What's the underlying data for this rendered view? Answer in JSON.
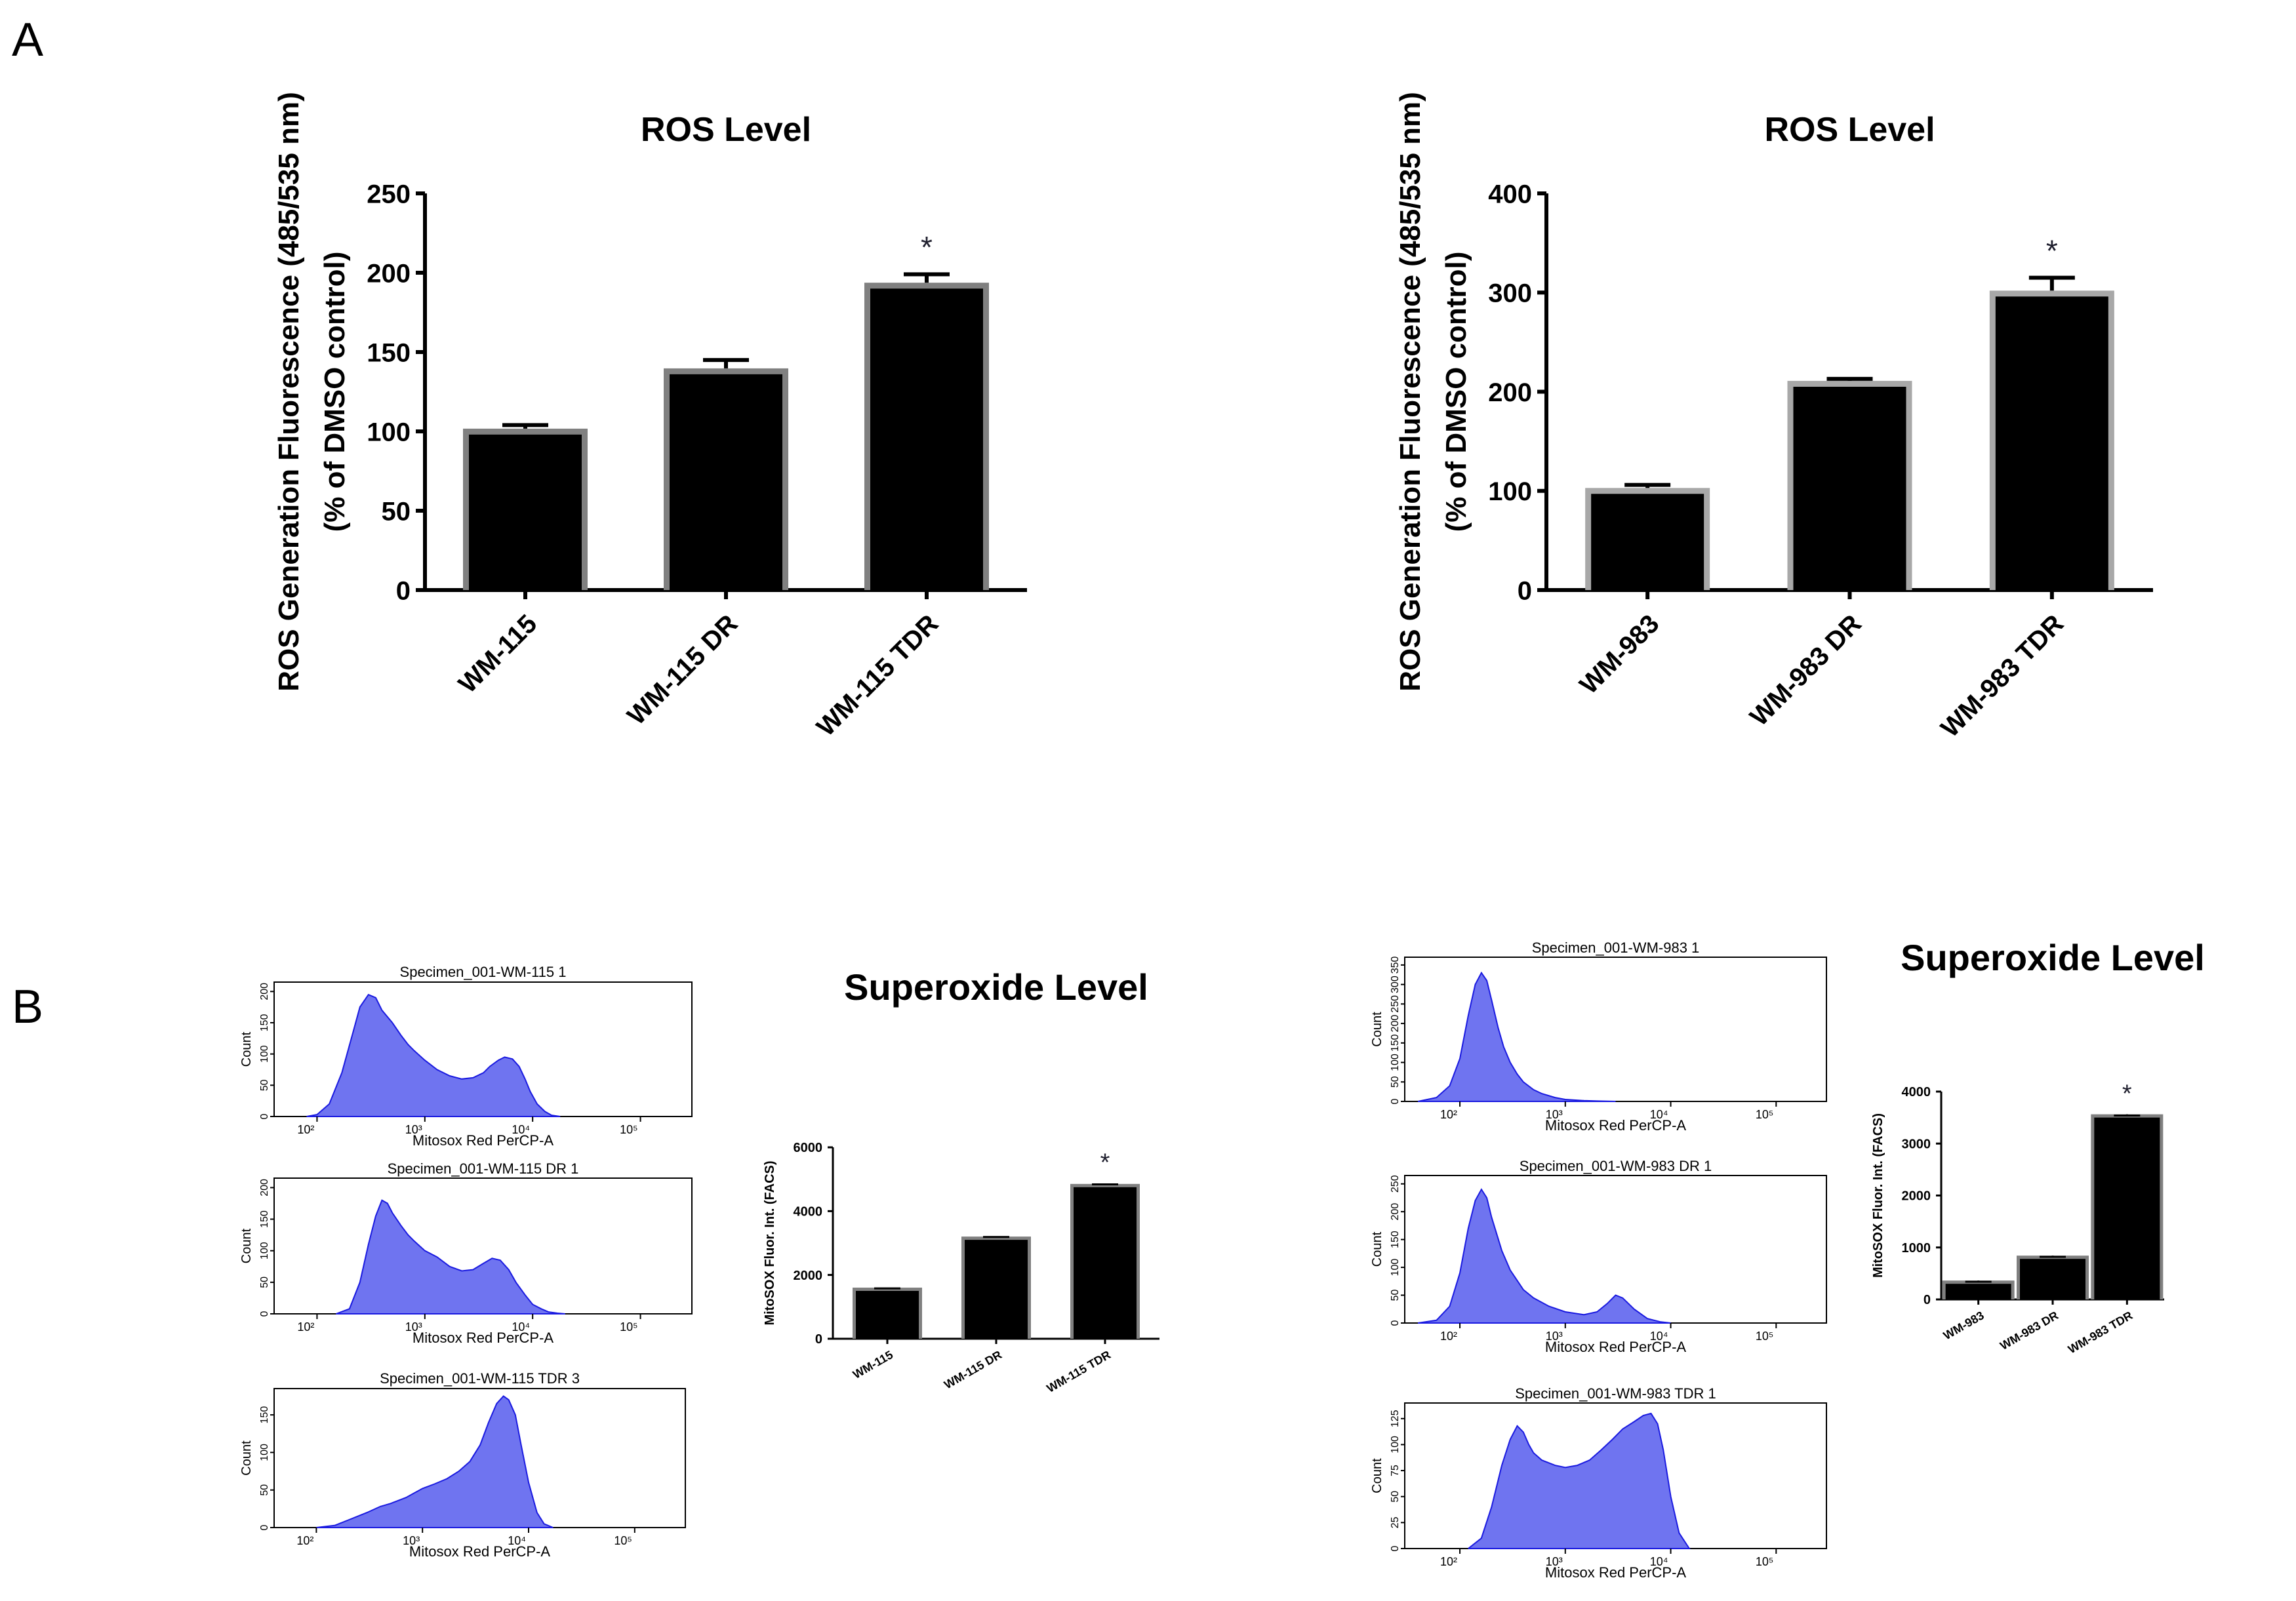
{
  "panel_labels": {
    "A": "A",
    "B": "B"
  },
  "colors": {
    "bar_fill": "#000000",
    "bar_border": "#808080",
    "bar_border_light": "#a8a8a8",
    "axis": "#000000",
    "histogram_fill": "#6f74f0",
    "histogram_edge": "#1a1ae0",
    "significance": "#1f1f2e"
  },
  "chart_data": [
    {
      "id": "ros_wm115",
      "type": "bar",
      "title": "ROS Level",
      "ylabel_line1": "ROS Generation Fluorescence (485/535 nm)",
      "ylabel_line2": "(% of DMSO control)",
      "xlabel": "",
      "categories": [
        "WM-115",
        "WM-115 DR",
        "WM-115 TDR"
      ],
      "values": [
        98,
        136,
        190
      ],
      "errors": [
        6,
        9,
        9
      ],
      "significance": [
        "",
        "",
        "*"
      ],
      "ylim": [
        0,
        250
      ],
      "yticks": [
        0,
        50,
        100,
        150,
        200,
        250
      ],
      "ytick_labels": [
        "0",
        "50",
        "100",
        "150",
        "200",
        "250"
      ],
      "grid": false
    },
    {
      "id": "ros_wm983",
      "type": "bar",
      "title": "ROS Level",
      "ylabel_line1": "ROS Generation Fluorescence (485/535 nm)",
      "ylabel_line2": "(% of DMSO control)",
      "xlabel": "",
      "categories": [
        "WM-983",
        "WM-983 DR",
        "WM-983 TDR"
      ],
      "values": [
        97,
        205,
        296
      ],
      "errors": [
        9,
        8,
        19
      ],
      "significance": [
        "",
        "",
        "*"
      ],
      "ylim": [
        0,
        400
      ],
      "yticks": [
        0,
        100,
        200,
        300,
        400
      ],
      "ytick_labels": [
        "0",
        "100",
        "200",
        "300",
        "400"
      ],
      "grid": false
    },
    {
      "id": "superoxide_wm115",
      "type": "bar",
      "title": "Superoxide Level",
      "ylabel": "MitoSOX Fluor. Int. (FACS)",
      "xlabel": "",
      "categories": [
        "WM-115",
        "WM-115 DR",
        "WM-115 TDR"
      ],
      "values": [
        1500,
        3100,
        4750
      ],
      "errors": [
        80,
        90,
        90
      ],
      "significance": [
        "",
        "",
        "*"
      ],
      "ylim": [
        0,
        6000
      ],
      "yticks": [
        0,
        2000,
        4000,
        6000
      ],
      "ytick_labels": [
        "0",
        "2000",
        "4000",
        "6000"
      ],
      "grid": false
    },
    {
      "id": "superoxide_wm983",
      "type": "bar",
      "title": "Superoxide Level",
      "ylabel": "MitoSOX Fluor. Int. (FACS)",
      "xlabel": "",
      "categories": [
        "WM-983",
        "WM-983 DR",
        "WM-983 TDR"
      ],
      "values": [
        300,
        780,
        3500
      ],
      "errors": [
        40,
        40,
        40
      ],
      "significance": [
        "",
        "",
        "*"
      ],
      "ylim": [
        0,
        4000
      ],
      "yticks": [
        0,
        1000,
        2000,
        3000,
        4000
      ],
      "ytick_labels": [
        "0",
        "1000",
        "2000",
        "3000",
        "4000"
      ],
      "grid": false
    },
    {
      "id": "hist_wm115_1",
      "type": "area",
      "title": "Specimen_001-WM-115 1",
      "xlabel": "Mitosox Red PerCP-A",
      "ylabel": "Count",
      "x_scale": "log",
      "xlim": [
        40,
        300000
      ],
      "xticks": [
        100,
        1000,
        10000,
        100000
      ],
      "xtick_labels": [
        "10²",
        "10³",
        "10⁴",
        "10⁵"
      ],
      "ylim": [
        0,
        215
      ],
      "yticks": [
        0,
        50,
        100,
        150,
        200
      ],
      "ytick_labels": [
        "0",
        "50",
        "100",
        "150",
        "200"
      ],
      "x": [
        80,
        100,
        130,
        170,
        220,
        250,
        300,
        350,
        400,
        500,
        600,
        700,
        800,
        1000,
        1300,
        1700,
        2200,
        2800,
        3500,
        4000,
        4800,
        5500,
        6500,
        7500,
        8500,
        9500,
        11000,
        13000,
        15000,
        18000
      ],
      "y": [
        0,
        3,
        20,
        70,
        140,
        175,
        195,
        190,
        170,
        150,
        130,
        115,
        105,
        90,
        75,
        65,
        60,
        62,
        70,
        80,
        90,
        95,
        92,
        80,
        60,
        40,
        20,
        8,
        2,
        0
      ]
    },
    {
      "id": "hist_wm115_dr",
      "type": "area",
      "title": "Specimen_001-WM-115 DR 1",
      "xlabel": "Mitosox Red PerCP-A",
      "ylabel": "Count",
      "x_scale": "log",
      "xlim": [
        40,
        300000
      ],
      "xticks": [
        100,
        1000,
        10000,
        100000
      ],
      "xtick_labels": [
        "10²",
        "10³",
        "10⁴",
        "10⁵"
      ],
      "ylim": [
        0,
        215
      ],
      "yticks": [
        0,
        50,
        100,
        150,
        200
      ],
      "ytick_labels": [
        "0",
        "50",
        "100",
        "150",
        "200"
      ],
      "x": [
        150,
        200,
        250,
        300,
        350,
        400,
        450,
        500,
        600,
        700,
        800,
        1000,
        1300,
        1700,
        2200,
        2800,
        3500,
        4200,
        5000,
        6000,
        7000,
        8500,
        10000,
        12000,
        14000,
        17000,
        20000
      ],
      "y": [
        0,
        8,
        50,
        110,
        155,
        180,
        175,
        160,
        140,
        125,
        115,
        100,
        90,
        75,
        68,
        70,
        80,
        88,
        85,
        70,
        50,
        30,
        15,
        8,
        3,
        1,
        0
      ]
    },
    {
      "id": "hist_wm115_tdr",
      "type": "area",
      "title": "Specimen_001-WM-115 TDR 3",
      "xlabel": "Mitosox Red PerCP-A",
      "ylabel": "Count",
      "x_scale": "log",
      "xlim": [
        40,
        300000
      ],
      "xticks": [
        100,
        1000,
        10000,
        100000
      ],
      "xtick_labels": [
        "10²",
        "10³",
        "10⁴",
        "10⁵"
      ],
      "ylim": [
        0,
        185
      ],
      "yticks": [
        0,
        50,
        100,
        150
      ],
      "ytick_labels": [
        "0",
        "50",
        "100",
        "150"
      ],
      "x": [
        100,
        150,
        200,
        300,
        400,
        500,
        700,
        1000,
        1300,
        1700,
        2200,
        2800,
        3500,
        4200,
        5000,
        5800,
        6500,
        7500,
        8500,
        10000,
        12000,
        14000,
        17000
      ],
      "y": [
        0,
        3,
        10,
        20,
        28,
        32,
        40,
        52,
        58,
        65,
        75,
        88,
        110,
        140,
        165,
        175,
        170,
        150,
        110,
        60,
        20,
        5,
        0
      ]
    },
    {
      "id": "hist_wm983_1",
      "type": "area",
      "title": "Specimen_001-WM-983 1",
      "xlabel": "Mitosox Red PerCP-A",
      "ylabel": "Count",
      "x_scale": "log",
      "xlim": [
        30,
        300000
      ],
      "xticks": [
        100,
        1000,
        10000,
        100000
      ],
      "xtick_labels": [
        "10²",
        "10³",
        "10⁴",
        "10⁵"
      ],
      "ylim": [
        0,
        370
      ],
      "yticks": [
        0,
        50,
        100,
        150,
        200,
        250,
        300,
        350
      ],
      "ytick_labels": [
        "0",
        "50",
        "100",
        "150",
        "200",
        "250",
        "300",
        "350"
      ],
      "x": [
        40,
        60,
        80,
        100,
        120,
        140,
        160,
        180,
        200,
        230,
        260,
        300,
        350,
        400,
        500,
        600,
        800,
        1000,
        1500,
        2000,
        3000
      ],
      "y": [
        0,
        10,
        40,
        110,
        220,
        300,
        330,
        310,
        260,
        190,
        140,
        100,
        70,
        50,
        30,
        20,
        10,
        5,
        2,
        1,
        0
      ]
    },
    {
      "id": "hist_wm983_dr",
      "type": "area",
      "title": "Specimen_001-WM-983 DR 1",
      "xlabel": "Mitosox Red PerCP-A",
      "ylabel": "Count",
      "x_scale": "log",
      "xlim": [
        30,
        300000
      ],
      "xticks": [
        100,
        1000,
        10000,
        100000
      ],
      "xtick_labels": [
        "10²",
        "10³",
        "10⁴",
        "10⁵"
      ],
      "ylim": [
        0,
        265
      ],
      "yticks": [
        0,
        50,
        100,
        150,
        200,
        250
      ],
      "ytick_labels": [
        "0",
        "50",
        "100",
        "150",
        "200",
        "250"
      ],
      "x": [
        40,
        60,
        80,
        100,
        120,
        140,
        160,
        180,
        200,
        250,
        300,
        400,
        500,
        700,
        1000,
        1500,
        2000,
        2500,
        3000,
        3500,
        4500,
        6000,
        8000,
        10000
      ],
      "y": [
        0,
        5,
        30,
        90,
        170,
        220,
        240,
        225,
        190,
        130,
        95,
        60,
        45,
        30,
        20,
        15,
        20,
        35,
        50,
        45,
        25,
        8,
        2,
        0
      ]
    },
    {
      "id": "hist_wm983_tdr",
      "type": "area",
      "title": "Specimen_001-WM-983 TDR 1",
      "xlabel": "Mitosox Red PerCP-A",
      "ylabel": "Count",
      "x_scale": "log",
      "xlim": [
        30,
        300000
      ],
      "xticks": [
        100,
        1000,
        10000,
        100000
      ],
      "xtick_labels": [
        "10²",
        "10³",
        "10⁴",
        "10⁵"
      ],
      "ylim": [
        0,
        140
      ],
      "yticks": [
        0,
        25,
        50,
        75,
        100,
        125
      ],
      "ytick_labels": [
        "0",
        "25",
        "50",
        "75",
        "100",
        "125"
      ],
      "x": [
        120,
        160,
        200,
        250,
        300,
        350,
        400,
        450,
        500,
        600,
        800,
        1000,
        1300,
        1700,
        2200,
        2800,
        3500,
        4500,
        5500,
        6500,
        7500,
        8500,
        10000,
        12000,
        15000
      ],
      "y": [
        0,
        10,
        40,
        80,
        105,
        118,
        112,
        100,
        92,
        85,
        80,
        78,
        80,
        85,
        95,
        105,
        115,
        122,
        128,
        130,
        120,
        95,
        50,
        15,
        0
      ]
    }
  ]
}
